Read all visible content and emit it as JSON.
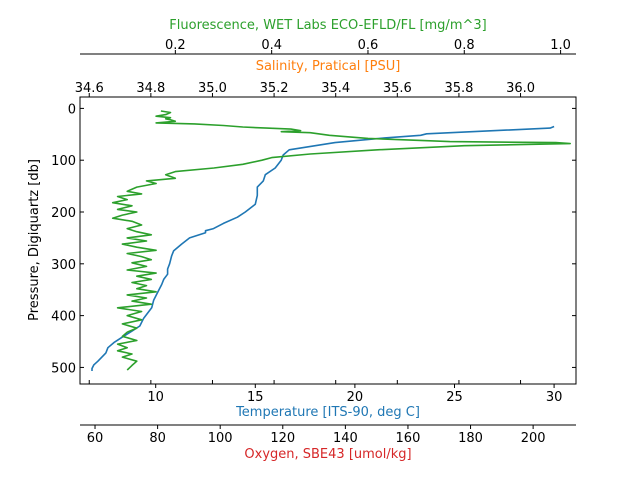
{
  "chart_data": {
    "type": "line",
    "colors": {
      "temperature": "#1f77b4",
      "salinity": "#ff7f0e",
      "oxygen": "#d62728",
      "fluorescence": "#2ca02c",
      "axis": "#000000"
    },
    "y_axis": {
      "label": "Pressure, Digiquartz [db]",
      "range": [
        532,
        -22
      ],
      "ticks": [
        0,
        100,
        200,
        300,
        400,
        500
      ],
      "inverted": true
    },
    "x_axes": [
      {
        "key": "temperature",
        "label": "Temperature [ITS-90, deg C]",
        "position": "bottom",
        "range": [
          6.2,
          31.1
        ],
        "ticks": [
          10,
          15,
          20,
          25,
          30
        ]
      },
      {
        "key": "oxygen",
        "label": "Oxygen, SBE43 [umol/kg]",
        "position": "bottom-offset",
        "range": [
          55.2,
          213.7
        ],
        "ticks": [
          60,
          80,
          100,
          120,
          140,
          160,
          180,
          200
        ]
      },
      {
        "key": "salinity",
        "label": "Salinity, Pratical [PSU]",
        "position": "top",
        "range": [
          34.57,
          36.18
        ],
        "ticks": [
          "34.6",
          "34.8",
          "35.0",
          "35.2",
          "35.4",
          "35.6",
          "35.8",
          "36.0"
        ]
      },
      {
        "key": "fluorescence",
        "label": "Fluorescence, WET Labs ECO-EFLD/FL [mg/m^3]",
        "position": "top-offset",
        "range": [
          0.002,
          1.032
        ],
        "ticks": [
          "0.2",
          "0.4",
          "0.6",
          "0.8",
          "1.0"
        ]
      }
    ],
    "series": [
      {
        "key": "temperature",
        "axis": "temperature",
        "x": [
          30.0,
          29.8,
          26.4,
          23.6,
          23.3,
          21.5,
          19.0,
          16.7,
          16.4,
          16.3,
          16.0,
          15.5,
          15.4,
          15.1,
          15.1,
          15.0,
          14.5,
          14.1,
          13.4,
          12.9,
          12.5,
          12.5,
          11.7,
          11.3,
          10.9,
          10.8,
          10.7,
          10.6,
          10.6,
          10.4,
          10.3,
          10.1,
          9.9,
          9.8,
          9.6,
          9.4,
          9.2,
          8.8,
          8.3,
          7.9,
          7.6,
          7.5,
          7.3,
          7.1,
          6.9,
          6.8,
          6.8
        ],
        "y": [
          35,
          38,
          44,
          49,
          52,
          57,
          66,
          80,
          90,
          100,
          115,
          128,
          140,
          152,
          168,
          185,
          200,
          210,
          222,
          232,
          236,
          240,
          250,
          262,
          275,
          285,
          300,
          310,
          320,
          330,
          340,
          355,
          370,
          385,
          395,
          405,
          420,
          430,
          442,
          452,
          462,
          472,
          480,
          488,
          495,
          502,
          507
        ]
      },
      {
        "key": "fluorescence",
        "axis": "fluorescence",
        "x": [
          0.17,
          0.19,
          0.18,
          0.16,
          0.19,
          0.18,
          0.19,
          0.2,
          0.16,
          0.24,
          0.3,
          0.34,
          0.39,
          0.44,
          0.46,
          0.42,
          0.48,
          0.52,
          0.6,
          0.77,
          0.99,
          1.02,
          0.8,
          0.62,
          0.48,
          0.4,
          0.38,
          0.34,
          0.28,
          0.2,
          0.18,
          0.2,
          0.14,
          0.16,
          0.12,
          0.1,
          0.13,
          0.08,
          0.1,
          0.07,
          0.11,
          0.08,
          0.12,
          0.09,
          0.07,
          0.11,
          0.13,
          0.1,
          0.12,
          0.15,
          0.1,
          0.14,
          0.09,
          0.12,
          0.16,
          0.1,
          0.13,
          0.15,
          0.11,
          0.14,
          0.1,
          0.16,
          0.12,
          0.15,
          0.11,
          0.14,
          0.12,
          0.16,
          0.1,
          0.14,
          0.11,
          0.15,
          0.08,
          0.13,
          0.1,
          0.13,
          0.09,
          0.12,
          0.1,
          0.09,
          0.12,
          0.08,
          0.1,
          0.08,
          0.11,
          0.09,
          0.12,
          0.11,
          0.1
        ],
        "y": [
          5,
          8,
          12,
          15,
          18,
          20,
          22,
          25,
          28,
          30,
          33,
          36,
          38,
          40,
          43,
          45,
          47,
          52,
          58,
          64,
          66,
          68,
          72,
          80,
          88,
          95,
          100,
          108,
          115,
          122,
          128,
          135,
          140,
          145,
          152,
          160,
          165,
          170,
          176,
          182,
          188,
          195,
          200,
          206,
          212,
          218,
          225,
          232,
          238,
          244,
          250,
          256,
          262,
          268,
          274,
          280,
          286,
          292,
          298,
          305,
          312,
          318,
          324,
          330,
          336,
          342,
          348,
          354,
          360,
          366,
          372,
          378,
          385,
          392,
          400,
          408,
          416,
          424,
          432,
          440,
          448,
          455,
          462,
          468,
          474,
          480,
          488,
          496,
          505
        ]
      }
    ]
  }
}
